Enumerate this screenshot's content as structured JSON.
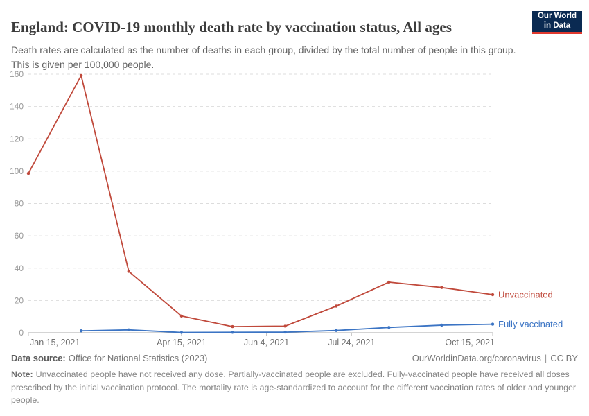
{
  "header": {
    "title": "England: COVID-19 monthly death rate by vaccination status, All ages",
    "subtitle": "Death rates are calculated as the number of deaths in each group, divided by the total number of people in this group. This is given per 100,000 people.",
    "logo": {
      "line1": "Our World",
      "line2": "in Data"
    }
  },
  "colors": {
    "unvaccinated": "#c0493b",
    "fully_vaccinated": "#3b74c4",
    "logo_bg": "#0a2a52",
    "logo_accent": "#e0392e",
    "gridline": "#dcdcdc",
    "axis": "#a8a8a8",
    "tick": "#bdbdbd"
  },
  "chart_data": {
    "type": "line",
    "title": "England: COVID-19 monthly death rate by vaccination status, All ages",
    "unit": "deaths per 100,000 people",
    "xlabel": "",
    "ylabel": "",
    "x_range": [
      "2021-01-15",
      "2021-10-15"
    ],
    "ylim": [
      0,
      160
    ],
    "yticks": [
      0,
      20,
      40,
      60,
      80,
      100,
      120,
      140,
      160
    ],
    "grid": "horizontal-dashed",
    "legend": "end-of-line-labels",
    "x_ticks": [
      {
        "label": "Jan 15, 2021",
        "date": "2021-01-15",
        "align": "start"
      },
      {
        "label": "Apr 15, 2021",
        "date": "2021-04-15",
        "align": "middle"
      },
      {
        "label": "Jun 4, 2021",
        "date": "2021-06-04",
        "align": "middle"
      },
      {
        "label": "Jul 24, 2021",
        "date": "2021-07-24",
        "align": "middle"
      },
      {
        "label": "Oct 15, 2021",
        "date": "2021-10-15",
        "align": "end"
      }
    ],
    "series": [
      {
        "name": "Unvaccinated",
        "color": "#c0493b",
        "points": [
          {
            "date": "2021-01-15",
            "value": 98.6
          },
          {
            "date": "2021-02-15",
            "value": 159.2
          },
          {
            "date": "2021-03-15",
            "value": 38.0
          },
          {
            "date": "2021-04-15",
            "value": 10.4
          },
          {
            "date": "2021-05-15",
            "value": 3.8
          },
          {
            "date": "2021-06-15",
            "value": 4.1
          },
          {
            "date": "2021-07-15",
            "value": 16.5
          },
          {
            "date": "2021-08-15",
            "value": 31.3
          },
          {
            "date": "2021-09-15",
            "value": 28.0
          },
          {
            "date": "2021-10-15",
            "value": 23.6
          }
        ]
      },
      {
        "name": "Fully vaccinated",
        "color": "#3b74c4",
        "points": [
          {
            "date": "2021-02-15",
            "value": 1.2
          },
          {
            "date": "2021-03-15",
            "value": 1.8
          },
          {
            "date": "2021-04-15",
            "value": 0.2
          },
          {
            "date": "2021-05-15",
            "value": 0.3
          },
          {
            "date": "2021-06-15",
            "value": 0.4
          },
          {
            "date": "2021-07-15",
            "value": 1.4
          },
          {
            "date": "2021-08-15",
            "value": 3.3
          },
          {
            "date": "2021-09-15",
            "value": 4.7
          },
          {
            "date": "2021-10-15",
            "value": 5.3
          }
        ]
      }
    ]
  },
  "footer": {
    "datasource_label": "Data source:",
    "datasource_value": "Office for National Statistics (2023)",
    "link": "OurWorldinData.org/coronavirus",
    "separator": "|",
    "license": "CC BY",
    "note_label": "Note:",
    "note_text": "Unvaccinated people have not received any dose. Partially-vaccinated people are excluded. Fully-vaccinated people have received all doses prescribed by the initial vaccination protocol. The mortality rate is age-standardized to account for the different vaccination rates of older and younger people."
  }
}
